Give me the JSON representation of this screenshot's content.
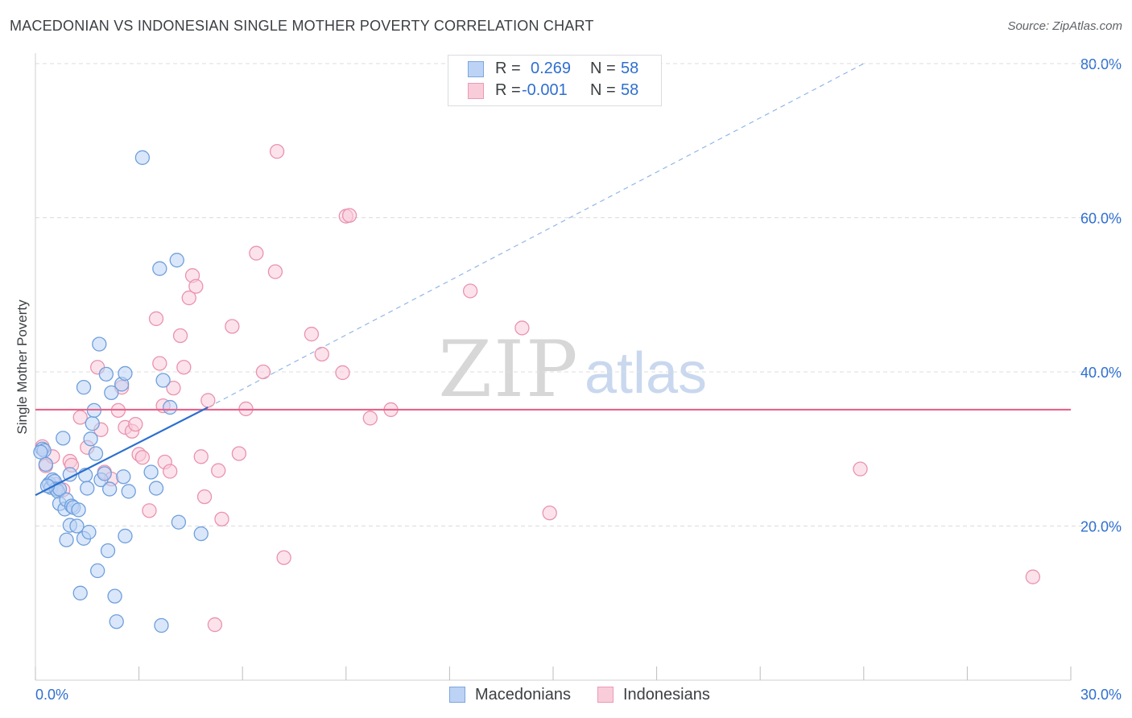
{
  "title": "MACEDONIAN VS INDONESIAN SINGLE MOTHER POVERTY CORRELATION CHART",
  "source": "Source: ZipAtlas.com",
  "watermark": {
    "zip": "ZIP",
    "atlas": "atlas"
  },
  "legend": {
    "r_label": "R =",
    "n_label": "N =",
    "rows": [
      {
        "r": "0.269",
        "n": "58"
      },
      {
        "r": "-0.001",
        "n": "58"
      }
    ]
  },
  "colors": {
    "blue_fill": "#bcd3f5",
    "blue_edge": "#6f9fdc",
    "blue_line": "#2b6fce",
    "pink_fill": "#f9ccda",
    "pink_edge": "#ea93ae",
    "pink_line": "#e8638c",
    "axis_text": "#2f6fd0",
    "grid": "#dcdcdc"
  },
  "chart_data": {
    "type": "scatter",
    "title": "MACEDONIAN VS INDONESIAN SINGLE MOTHER POVERTY CORRELATION CHART",
    "xlabel": "",
    "ylabel": "Single Mother Poverty",
    "xlim": [
      0,
      30
    ],
    "ylim": [
      0,
      80
    ],
    "x_tick_labels": [
      "0.0%",
      "30.0%"
    ],
    "y_ticks": [
      20,
      40,
      60,
      80
    ],
    "y_tick_labels": [
      "20.0%",
      "40.0%",
      "60.0%",
      "80.0%"
    ],
    "series": [
      {
        "name": "Macedonians",
        "points": [
          [
            0.2,
            30.0
          ],
          [
            0.3,
            28.0
          ],
          [
            0.4,
            25.5
          ],
          [
            0.45,
            25.0
          ],
          [
            0.5,
            26.0
          ],
          [
            0.55,
            25.8
          ],
          [
            0.6,
            24.8
          ],
          [
            0.65,
            24.5
          ],
          [
            0.7,
            24.8
          ],
          [
            0.7,
            22.9
          ],
          [
            0.8,
            31.4
          ],
          [
            0.85,
            22.2
          ],
          [
            0.9,
            18.2
          ],
          [
            0.9,
            23.4
          ],
          [
            1.0,
            26.7
          ],
          [
            1.0,
            20.1
          ],
          [
            1.05,
            22.6
          ],
          [
            1.1,
            22.4
          ],
          [
            1.2,
            20.0
          ],
          [
            1.25,
            22.1
          ],
          [
            1.3,
            11.3
          ],
          [
            1.4,
            38.0
          ],
          [
            1.4,
            18.4
          ],
          [
            1.45,
            26.6
          ],
          [
            1.5,
            24.9
          ],
          [
            1.55,
            19.2
          ],
          [
            1.6,
            31.3
          ],
          [
            1.65,
            33.3
          ],
          [
            1.7,
            35.0
          ],
          [
            1.75,
            29.4
          ],
          [
            1.8,
            14.2
          ],
          [
            1.85,
            43.6
          ],
          [
            1.9,
            26.0
          ],
          [
            2.0,
            26.8
          ],
          [
            2.05,
            39.7
          ],
          [
            2.1,
            16.8
          ],
          [
            2.15,
            24.8
          ],
          [
            2.2,
            37.3
          ],
          [
            2.3,
            10.9
          ],
          [
            2.35,
            7.6
          ],
          [
            2.5,
            38.4
          ],
          [
            2.55,
            26.4
          ],
          [
            2.6,
            39.8
          ],
          [
            2.6,
            18.7
          ],
          [
            2.7,
            24.5
          ],
          [
            3.1,
            67.8
          ],
          [
            3.35,
            27.0
          ],
          [
            3.5,
            24.9
          ],
          [
            3.6,
            53.4
          ],
          [
            3.65,
            7.1
          ],
          [
            3.7,
            38.9
          ],
          [
            3.9,
            35.4
          ],
          [
            4.1,
            54.5
          ],
          [
            4.15,
            20.5
          ],
          [
            4.8,
            19.0
          ],
          [
            0.25,
            29.8
          ],
          [
            0.35,
            25.2
          ],
          [
            0.15,
            29.6
          ]
        ]
      },
      {
        "name": "Indonesians",
        "points": [
          [
            0.2,
            30.3
          ],
          [
            0.3,
            27.8
          ],
          [
            0.5,
            29.0
          ],
          [
            0.6,
            25.4
          ],
          [
            0.8,
            24.7
          ],
          [
            1.0,
            28.4
          ],
          [
            1.05,
            27.9
          ],
          [
            1.3,
            34.1
          ],
          [
            1.5,
            30.2
          ],
          [
            1.8,
            40.6
          ],
          [
            1.9,
            32.5
          ],
          [
            2.0,
            27.0
          ],
          [
            2.2,
            26.1
          ],
          [
            2.4,
            35.0
          ],
          [
            2.5,
            38.0
          ],
          [
            2.6,
            32.8
          ],
          [
            2.8,
            32.3
          ],
          [
            2.9,
            33.2
          ],
          [
            3.0,
            29.3
          ],
          [
            3.1,
            28.9
          ],
          [
            3.3,
            22.0
          ],
          [
            3.5,
            46.9
          ],
          [
            3.6,
            41.1
          ],
          [
            3.7,
            35.6
          ],
          [
            3.75,
            28.3
          ],
          [
            3.9,
            27.1
          ],
          [
            4.0,
            37.9
          ],
          [
            4.2,
            44.7
          ],
          [
            4.3,
            40.6
          ],
          [
            4.45,
            49.6
          ],
          [
            4.55,
            52.5
          ],
          [
            4.65,
            51.1
          ],
          [
            4.8,
            29.0
          ],
          [
            4.9,
            23.8
          ],
          [
            5.0,
            36.3
          ],
          [
            5.2,
            7.2
          ],
          [
            5.3,
            27.2
          ],
          [
            5.4,
            20.9
          ],
          [
            5.7,
            45.9
          ],
          [
            5.9,
            29.4
          ],
          [
            6.1,
            35.2
          ],
          [
            6.4,
            55.4
          ],
          [
            6.6,
            40.0
          ],
          [
            6.95,
            53.0
          ],
          [
            7.0,
            68.6
          ],
          [
            7.2,
            15.9
          ],
          [
            8.0,
            44.9
          ],
          [
            8.3,
            42.3
          ],
          [
            8.9,
            39.9
          ],
          [
            9.0,
            60.2
          ],
          [
            9.1,
            60.3
          ],
          [
            9.7,
            34.0
          ],
          [
            10.3,
            35.1
          ],
          [
            12.6,
            50.5
          ],
          [
            14.1,
            45.7
          ],
          [
            14.9,
            21.7
          ],
          [
            23.9,
            27.4
          ],
          [
            28.9,
            13.4
          ]
        ]
      }
    ],
    "trend_lines": [
      {
        "series": "Macedonians",
        "solid": [
          [
            0.0,
            24.0
          ],
          [
            5.0,
            35.4
          ]
        ],
        "dashed": [
          [
            5.0,
            35.4
          ],
          [
            24.0,
            80.0
          ]
        ]
      },
      {
        "series": "Indonesians",
        "solid": [
          [
            0.0,
            35.1
          ],
          [
            30.0,
            35.1
          ]
        ]
      }
    ]
  },
  "bottom_legend": [
    {
      "label": "Macedonians"
    },
    {
      "label": "Indonesians"
    }
  ]
}
